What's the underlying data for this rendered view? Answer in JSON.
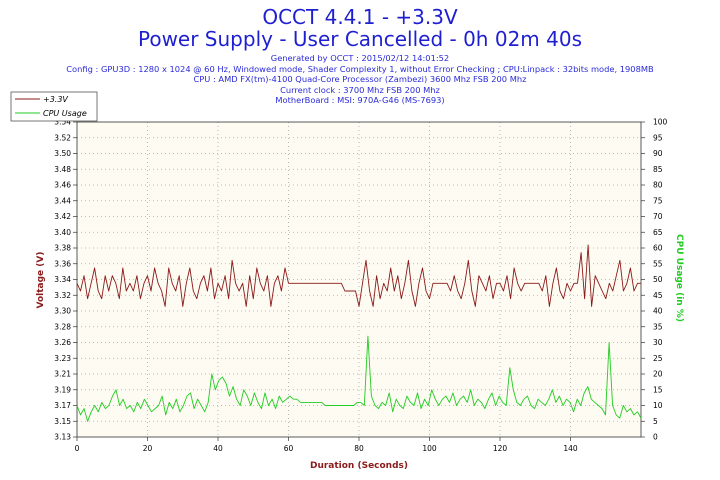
{
  "header": {
    "title": "OCCT 4.4.1 - +3.3V",
    "subtitle": "Power Supply - User Cancelled - 0h 02m 40s",
    "info": [
      "Generated by OCCT : 2015/02/12 14:01:52",
      "Config : GPU3D : 1280 x 1024 @ 60 Hz, Windowed mode, Shader Complexity 1, without Error Checking ; CPU:Linpack : 32bits mode, 1908MB",
      "CPU : AMD FX(tm)-4100 Quad-Core Processor (Zambezi) 3600 Mhz FSB 200 Mhz",
      "Current clock : 3700 Mhz FSB 200 Mhz",
      "MotherBoard : MSI: 970A-G46 (MS-7693)"
    ]
  },
  "colors": {
    "voltage": "#8b1a1a",
    "cpu": "#22cc22",
    "plot_bg": "#fdfbf2",
    "grid": "#a8a8a8",
    "title": "#1f1fd2"
  },
  "chart_data": {
    "type": "line",
    "xlabel": "Duration (Seconds)",
    "ylabel": "Voltage (V)",
    "y2label": "CPU Usage (in %)",
    "xlim": [
      0,
      160
    ],
    "ylim": [
      3.13,
      3.54
    ],
    "y2lim": [
      0,
      100
    ],
    "grid": true,
    "legend_position": "top-left",
    "x_ticks": [
      "0",
      "20",
      "40",
      "60",
      "80",
      "100",
      "120",
      "140"
    ],
    "y_ticks": [
      "3.13",
      "3.15",
      "3.17",
      "3.19",
      "3.21",
      "3.23",
      "3.26",
      "3.28",
      "3.30",
      "3.32",
      "3.34",
      "3.36",
      "3.38",
      "3.40",
      "3.42",
      "3.44",
      "3.46",
      "3.48",
      "3.50",
      "3.52",
      "3.54"
    ],
    "y2_ticks": [
      "0",
      "5",
      "10",
      "15",
      "20",
      "25",
      "30",
      "35",
      "40",
      "45",
      "50",
      "55",
      "60",
      "65",
      "70",
      "75",
      "80",
      "85",
      "90",
      "95",
      "100"
    ],
    "series": [
      {
        "name": "+3.3V",
        "axis": "left",
        "values": [
          3.33,
          3.32,
          3.34,
          3.31,
          3.33,
          3.35,
          3.32,
          3.31,
          3.34,
          3.32,
          3.34,
          3.33,
          3.31,
          3.35,
          3.32,
          3.33,
          3.32,
          3.34,
          3.31,
          3.33,
          3.34,
          3.32,
          3.35,
          3.33,
          3.32,
          3.3,
          3.35,
          3.33,
          3.32,
          3.34,
          3.3,
          3.33,
          3.35,
          3.32,
          3.31,
          3.33,
          3.34,
          3.32,
          3.35,
          3.31,
          3.33,
          3.32,
          3.34,
          3.31,
          3.36,
          3.33,
          3.32,
          3.33,
          3.3,
          3.34,
          3.31,
          3.35,
          3.33,
          3.32,
          3.34,
          3.3,
          3.33,
          3.34,
          3.32,
          3.35,
          3.33,
          3.33,
          3.33,
          3.33,
          3.33,
          3.33,
          3.33,
          3.33,
          3.33,
          3.33,
          3.33,
          3.33,
          3.33,
          3.33,
          3.33,
          3.33,
          3.32,
          3.32,
          3.32,
          3.32,
          3.3,
          3.33,
          3.36,
          3.32,
          3.3,
          3.34,
          3.31,
          3.33,
          3.32,
          3.35,
          3.32,
          3.34,
          3.31,
          3.33,
          3.36,
          3.32,
          3.3,
          3.33,
          3.35,
          3.32,
          3.31,
          3.33,
          3.33,
          3.33,
          3.33,
          3.33,
          3.32,
          3.34,
          3.32,
          3.31,
          3.33,
          3.36,
          3.32,
          3.3,
          3.34,
          3.33,
          3.32,
          3.34,
          3.31,
          3.33,
          3.33,
          3.32,
          3.34,
          3.31,
          3.35,
          3.33,
          3.32,
          3.33,
          3.33,
          3.33,
          3.33,
          3.33,
          3.32,
          3.34,
          3.3,
          3.33,
          3.35,
          3.32,
          3.31,
          3.33,
          3.32,
          3.33,
          3.33,
          3.37,
          3.31,
          3.38,
          3.3,
          3.34,
          3.33,
          3.32,
          3.31,
          3.33,
          3.32,
          3.34,
          3.36,
          3.32,
          3.33,
          3.35,
          3.32,
          3.33,
          3.33
        ]
      },
      {
        "name": "CPU Usage",
        "axis": "right",
        "values": [
          10,
          7,
          9,
          5,
          8,
          10,
          8,
          11,
          9,
          10,
          13,
          15,
          10,
          12,
          9,
          10,
          8,
          11,
          9,
          12,
          10,
          8,
          9,
          10,
          13,
          7,
          11,
          9,
          12,
          8,
          10,
          13,
          14,
          9,
          12,
          10,
          8,
          11,
          20,
          15,
          18,
          19,
          17,
          13,
          16,
          12,
          10,
          15,
          13,
          10,
          14,
          11,
          9,
          14,
          10,
          12,
          9,
          13,
          11,
          12,
          13,
          12,
          12,
          11,
          11,
          11,
          11,
          11,
          11,
          11,
          10,
          10,
          10,
          10,
          10,
          10,
          10,
          10,
          10,
          11,
          11,
          10,
          32,
          13,
          10,
          9,
          11,
          10,
          14,
          8,
          12,
          10,
          9,
          13,
          11,
          10,
          14,
          9,
          12,
          10,
          15,
          12,
          10,
          12,
          13,
          11,
          14,
          10,
          12,
          13,
          11,
          15,
          10,
          12,
          11,
          9,
          12,
          14,
          10,
          13,
          11,
          10,
          22,
          15,
          11,
          10,
          12,
          13,
          10,
          9,
          12,
          11,
          10,
          12,
          15,
          11,
          13,
          10,
          12,
          11,
          8,
          12,
          10,
          14,
          16,
          12,
          11,
          10,
          9,
          7,
          30,
          10,
          7,
          6,
          10,
          8,
          9,
          7,
          8,
          6
        ]
      }
    ]
  }
}
